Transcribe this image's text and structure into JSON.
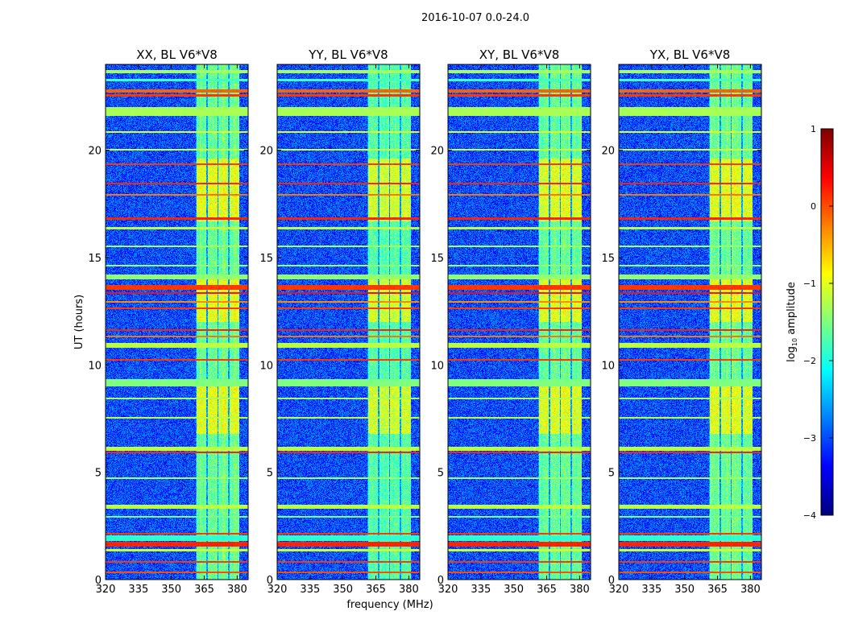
{
  "chart_data": {
    "type": "heatmap",
    "suptitle": "2016-10-07 0.0-24.0",
    "xlabel": "frequency (MHz)",
    "ylabel": "UT (hours)",
    "xlim": [
      320,
      385
    ],
    "ylim": [
      0,
      24
    ],
    "xticks": [
      320,
      335,
      350,
      365,
      380
    ],
    "yticks": [
      0,
      5,
      10,
      15,
      20
    ],
    "panels": [
      {
        "title": "XX, BL V6*V8",
        "rfi_level": -1.6,
        "seed": 11
      },
      {
        "title": "YY, BL V6*V8",
        "rfi_level": -1.7,
        "seed": 23
      },
      {
        "title": "XY, BL V6*V8",
        "rfi_level": -1.6,
        "seed": 37
      },
      {
        "title": "YX, BL V6*V8",
        "rfi_level": -1.6,
        "seed": 51
      }
    ],
    "colorbar": {
      "label_prefix": "log",
      "label_sub": "10",
      "label_suffix": " amplitude",
      "colormap": "jet",
      "range": [
        -4,
        1
      ],
      "ticks": [
        1,
        0,
        -1,
        -2,
        -3,
        -4
      ]
    },
    "background_level": -3.0,
    "rfi_band_mhz": [
      361,
      381
    ],
    "rfi_bright_hours": [
      [
        16.7,
        19.6
      ],
      [
        12.0,
        14.0
      ],
      [
        6.8,
        9.0
      ]
    ],
    "horizontal_bands": [
      {
        "ut": [
          23.6,
          23.7
        ],
        "level": -1.3
      },
      {
        "ut": [
          23.2,
          23.3
        ],
        "level": -1.8
      },
      {
        "ut": [
          22.7,
          22.8
        ],
        "level": -0.1
      },
      {
        "ut": [
          22.5,
          22.6
        ],
        "level": 0.1
      },
      {
        "ut": [
          21.6,
          22.0
        ],
        "level": -1.3
      },
      {
        "ut": [
          20.8,
          20.85
        ],
        "level": -1.0
      },
      {
        "ut": [
          20.0,
          20.05
        ],
        "level": -1.1
      },
      {
        "ut": [
          19.3,
          19.35
        ],
        "level": 0.1
      },
      {
        "ut": [
          18.4,
          18.45
        ],
        "level": 0.2
      },
      {
        "ut": [
          17.9,
          17.95
        ],
        "level": -0.2
      },
      {
        "ut": [
          16.75,
          16.85
        ],
        "level": 0.2
      },
      {
        "ut": [
          16.3,
          16.4
        ],
        "level": -1.2
      },
      {
        "ut": [
          15.5,
          15.55
        ],
        "level": -1.3
      },
      {
        "ut": [
          14.6,
          14.65
        ],
        "level": -1.4
      },
      {
        "ut": [
          14.0,
          14.2
        ],
        "level": -1.4
      },
      {
        "ut": [
          13.5,
          13.7
        ],
        "level": 0.1
      },
      {
        "ut": [
          13.3,
          13.35
        ],
        "level": 0.3
      },
      {
        "ut": [
          12.9,
          12.95
        ],
        "level": -0.3
      },
      {
        "ut": [
          12.6,
          12.65
        ],
        "level": 0.1
      },
      {
        "ut": [
          11.6,
          11.65
        ],
        "level": 0.2
      },
      {
        "ut": [
          11.3,
          11.35
        ],
        "level": -0.2
      },
      {
        "ut": [
          10.8,
          11.0
        ],
        "level": -1.2
      },
      {
        "ut": [
          10.2,
          10.25
        ],
        "level": 0.1
      },
      {
        "ut": [
          9.0,
          9.3
        ],
        "level": -1.5
      },
      {
        "ut": [
          8.4,
          8.45
        ],
        "level": -1.3
      },
      {
        "ut": [
          7.5,
          7.55
        ],
        "level": -1.2
      },
      {
        "ut": [
          6.0,
          6.15
        ],
        "level": -1.2
      },
      {
        "ut": [
          5.9,
          5.95
        ],
        "level": 0.2
      },
      {
        "ut": [
          4.7,
          4.75
        ],
        "level": -1.3
      },
      {
        "ut": [
          3.3,
          3.45
        ],
        "level": -1.2
      },
      {
        "ut": [
          2.9,
          2.95
        ],
        "level": -1.5
      },
      {
        "ut": [
          2.1,
          2.15
        ],
        "level": 0.1
      },
      {
        "ut": [
          1.8,
          2.05
        ],
        "level": -1.9
      },
      {
        "ut": [
          1.55,
          1.75
        ],
        "level": 0.2
      },
      {
        "ut": [
          1.3,
          1.4
        ],
        "level": -1.1
      },
      {
        "ut": [
          0.8,
          0.85
        ],
        "level": 0.1
      },
      {
        "ut": [
          0.3,
          0.35
        ],
        "level": 0.0
      }
    ]
  }
}
